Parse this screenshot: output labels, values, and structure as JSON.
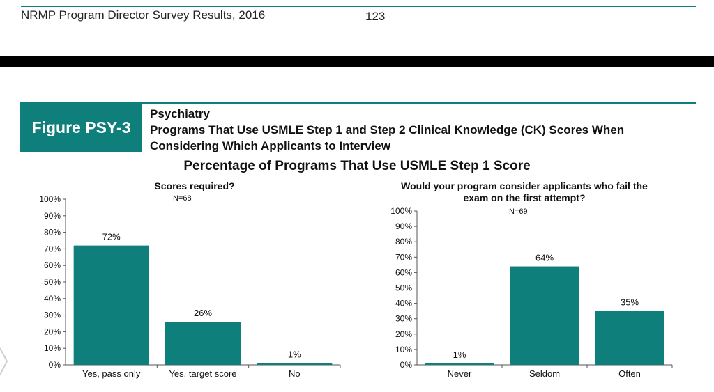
{
  "header": {
    "title": "NRMP Program Director Survey Results, 2016",
    "page_number": "123"
  },
  "figure": {
    "label": "Figure PSY-3",
    "specialty": "Psychiatry",
    "title_line1": "Programs That Use USMLE Step 1 and Step 2 Clinical Knowledge (CK) Scores When",
    "title_line2": "Considering Which Applicants to Interview"
  },
  "main_title": "Percentage of Programs That Use USMLE Step 1 Score",
  "colors": {
    "accent": "#0f7f7c",
    "bar": "#0f7f7c"
  },
  "chart_data": [
    {
      "type": "bar",
      "title": "Scores required?",
      "n_label": "N=68",
      "categories": [
        "Yes, pass only",
        "Yes, target score",
        "No"
      ],
      "values": [
        72,
        26,
        1
      ],
      "value_labels": [
        "72%",
        "26%",
        "1%"
      ],
      "ylim": [
        0,
        100
      ],
      "yticks": [
        "0%",
        "10%",
        "20%",
        "30%",
        "40%",
        "50%",
        "60%",
        "70%",
        "80%",
        "90%",
        "100%"
      ],
      "grid": false
    },
    {
      "type": "bar",
      "title": [
        "Would your program consider applicants who fail the",
        "exam on the first attempt?"
      ],
      "n_label": "N=69",
      "categories": [
        "Never",
        "Seldom",
        "Often"
      ],
      "values": [
        1,
        64,
        35
      ],
      "value_labels": [
        "1%",
        "64%",
        "35%"
      ],
      "ylim": [
        0,
        100
      ],
      "yticks": [
        "0%",
        "10%",
        "20%",
        "30%",
        "40%",
        "50%",
        "60%",
        "70%",
        "80%",
        "90%",
        "100%"
      ],
      "grid": false
    }
  ]
}
